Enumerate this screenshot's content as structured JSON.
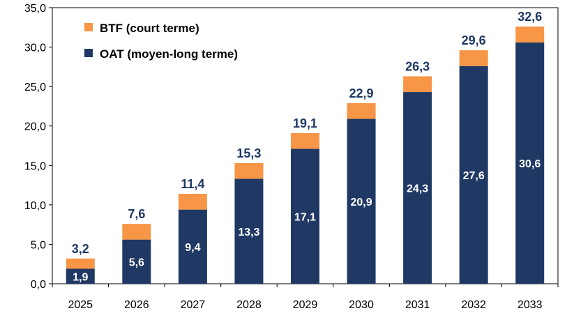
{
  "chart_data": {
    "type": "bar",
    "stacked": true,
    "categories": [
      "2025",
      "2026",
      "2027",
      "2028",
      "2029",
      "2030",
      "2031",
      "2032",
      "2033"
    ],
    "series": [
      {
        "name": "OAT (moyen-long terme)",
        "values": [
          1.9,
          5.6,
          9.4,
          13.3,
          17.1,
          20.9,
          24.3,
          27.6,
          30.6
        ],
        "color": "#1f3864"
      },
      {
        "name": "BTF (court terme)",
        "values": [
          1.3,
          2.0,
          2.0,
          2.0,
          2.0,
          2.0,
          2.0,
          2.0,
          2.0
        ],
        "color": "#f79646"
      }
    ],
    "totals": [
      3.2,
      7.6,
      11.4,
      15.3,
      19.1,
      22.9,
      26.3,
      29.6,
      32.6
    ],
    "labels": {
      "totals": [
        "3,2",
        "7,6",
        "11,4",
        "15,3",
        "19,1",
        "22,9",
        "26,3",
        "29,6",
        "32,6"
      ],
      "oat": [
        "1,9",
        "5,6",
        "9,4",
        "13,3",
        "17,1",
        "20,9",
        "24,3",
        "27,6",
        "30,6"
      ]
    },
    "ylim": [
      0,
      35
    ],
    "yticks": [
      0,
      5,
      10,
      15,
      20,
      25,
      30,
      35
    ],
    "ytick_labels": [
      "0,0",
      "5,0",
      "10,0",
      "15,0",
      "20,0",
      "25,0",
      "30,0",
      "35,0"
    ],
    "legend": {
      "position": "top-left",
      "entries": [
        "BTF (court terme)",
        "OAT (moyen-long terme)"
      ]
    },
    "grid": false,
    "title": "",
    "xlabel": "",
    "ylabel": ""
  }
}
